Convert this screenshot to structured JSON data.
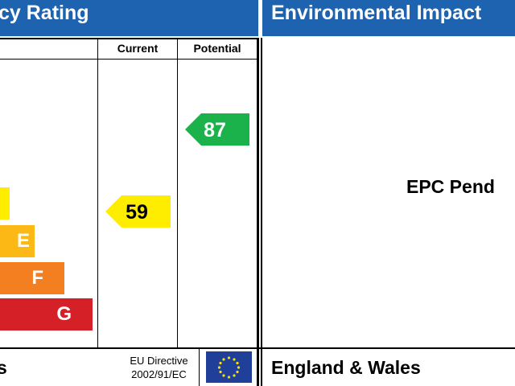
{
  "header": {
    "left_title": "cy Rating",
    "right_title": "Environmental Impact"
  },
  "energy": {
    "columns": [
      "Current",
      "Potential"
    ],
    "bands": [
      "E",
      "F",
      "G"
    ],
    "current": 59,
    "potential": 87,
    "footer_region": "s",
    "directive": [
      "EU Directive",
      "2002/91/EC"
    ]
  },
  "environmental": {
    "status": "EPC Pend",
    "footer_region": "England & Wales"
  }
}
